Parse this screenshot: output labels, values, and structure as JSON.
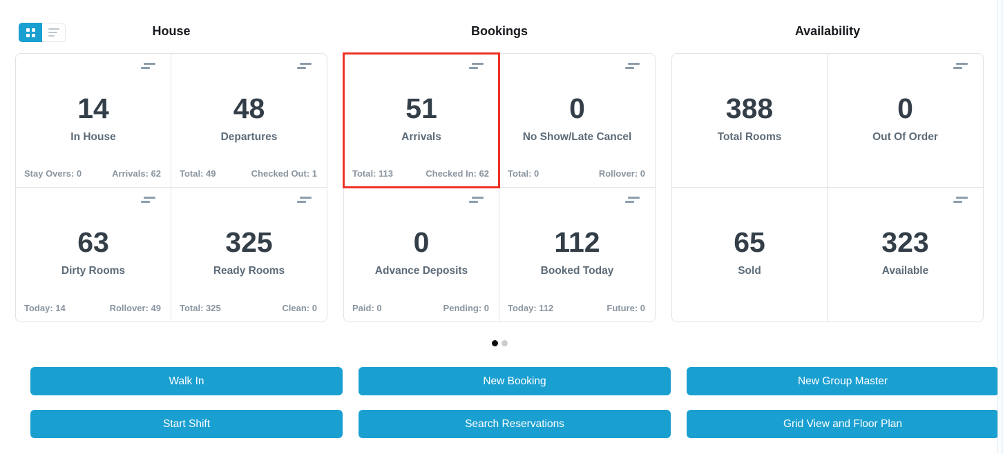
{
  "view_toggle": {
    "grid_label": "grid-view",
    "list_label": "list-view",
    "active": "grid"
  },
  "sections": [
    {
      "title": "House",
      "cards": [
        {
          "value": "14",
          "label": "In House",
          "footer_left": "Stay Overs: 0",
          "footer_right": "Arrivals: 62",
          "has_icon": true,
          "highlighted": false
        },
        {
          "value": "48",
          "label": "Departures",
          "footer_left": "Total: 49",
          "footer_right": "Checked Out: 1",
          "has_icon": true,
          "highlighted": false
        },
        {
          "value": "63",
          "label": "Dirty Rooms",
          "footer_left": "Today: 14",
          "footer_right": "Rollover: 49",
          "has_icon": true,
          "highlighted": false
        },
        {
          "value": "325",
          "label": "Ready Rooms",
          "footer_left": "Total: 325",
          "footer_right": "Clean: 0",
          "has_icon": true,
          "highlighted": false
        }
      ]
    },
    {
      "title": "Bookings",
      "cards": [
        {
          "value": "51",
          "label": "Arrivals",
          "footer_left": "Total: 113",
          "footer_right": "Checked In: 62",
          "has_icon": true,
          "highlighted": true
        },
        {
          "value": "0",
          "label": "No Show/Late Cancel",
          "footer_left": "Total: 0",
          "footer_right": "Rollover: 0",
          "has_icon": true,
          "highlighted": false
        },
        {
          "value": "0",
          "label": "Advance Deposits",
          "footer_left": "Paid: 0",
          "footer_right": "Pending: 0",
          "has_icon": true,
          "highlighted": false
        },
        {
          "value": "112",
          "label": "Booked Today",
          "footer_left": "Today: 112",
          "footer_right": "Future: 0",
          "has_icon": true,
          "highlighted": false
        }
      ]
    },
    {
      "title": "Availability",
      "cards": [
        {
          "value": "388",
          "label": "Total Rooms",
          "footer_left": "",
          "footer_right": "",
          "has_icon": false,
          "highlighted": false
        },
        {
          "value": "0",
          "label": "Out Of Order",
          "footer_left": "",
          "footer_right": "",
          "has_icon": true,
          "highlighted": false
        },
        {
          "value": "65",
          "label": "Sold",
          "footer_left": "",
          "footer_right": "",
          "has_icon": false,
          "highlighted": false
        },
        {
          "value": "323",
          "label": "Available",
          "footer_left": "",
          "footer_right": "",
          "has_icon": true,
          "highlighted": false
        }
      ]
    }
  ],
  "pagination": {
    "dots": [
      {
        "state": "active"
      },
      {
        "state": "inactive"
      }
    ]
  },
  "action_columns": [
    [
      "Walk In",
      "Start Shift"
    ],
    [
      "New Booking",
      "Search Reservations"
    ],
    [
      "New Group Master",
      "Grid View and Floor Plan"
    ]
  ],
  "colors": {
    "accent_blue": "#1a9fd1",
    "highlight_red": "#ef3124",
    "value_text": "#333e48",
    "label_text": "#5c6b78",
    "footer_text": "#8a95a0",
    "active_dot": "#0d0d0d",
    "inactive_dot": "#cccccc"
  }
}
